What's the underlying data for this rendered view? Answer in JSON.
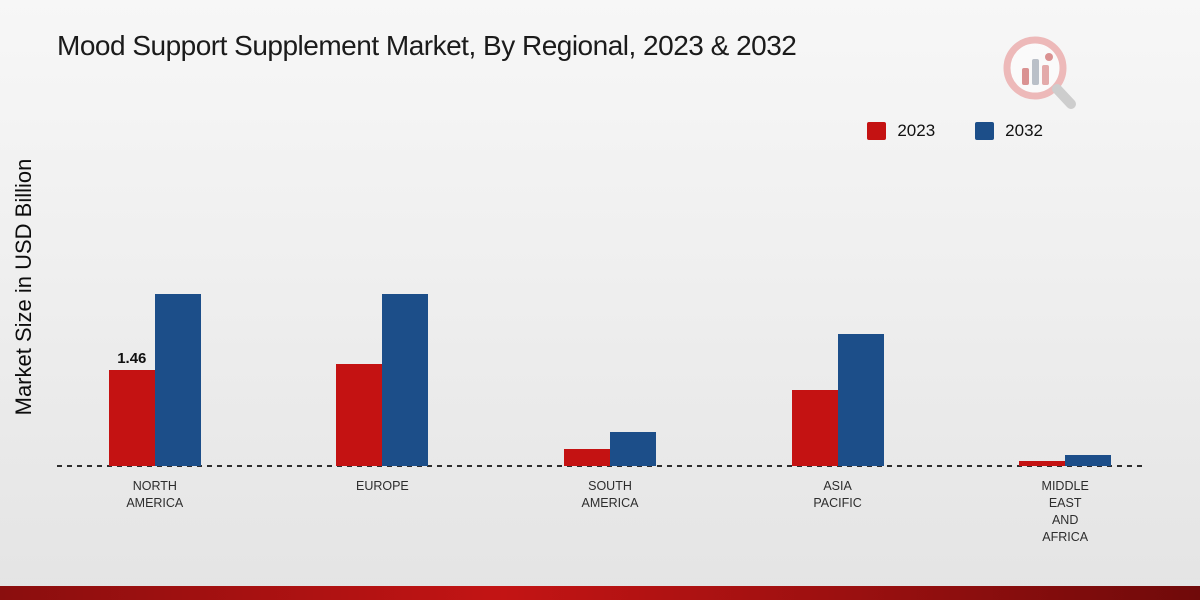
{
  "title": "Mood Support Supplement Market, By Regional, 2023 & 2032",
  "y_axis_label": "Market Size in USD Billion",
  "icons": {
    "logo": "bar-chart-magnifier-logo"
  },
  "colors": {
    "series_2023": "#c41212",
    "series_2032": "#1c4e89",
    "footer_band": "#b01010",
    "background": "#ededed"
  },
  "legend": {
    "position": "top-right",
    "items": [
      {
        "label": "2023",
        "color": "#c41212"
      },
      {
        "label": "2032",
        "color": "#1c4e89"
      }
    ]
  },
  "chart_data": {
    "type": "bar",
    "title": "Mood Support Supplement Market, By Regional, 2023 & 2032",
    "xlabel": "",
    "ylabel": "Market Size in USD Billion",
    "categories": [
      "NORTH AMERICA",
      "EUROPE",
      "SOUTH AMERICA",
      "ASIA PACIFIC",
      "MIDDLE EAST AND AFRICA"
    ],
    "series": [
      {
        "name": "2023",
        "color": "#c41212",
        "values": [
          1.46,
          1.55,
          0.25,
          1.15,
          0.08
        ]
      },
      {
        "name": "2032",
        "color": "#1c4e89",
        "values": [
          2.6,
          2.6,
          0.52,
          2.0,
          0.17
        ]
      }
    ],
    "annotations": [
      {
        "series": "2023",
        "category": "NORTH AMERICA",
        "text": "1.46"
      }
    ],
    "grid": false,
    "axis_line": "dashed-baseline",
    "legend_position": "top-right"
  }
}
